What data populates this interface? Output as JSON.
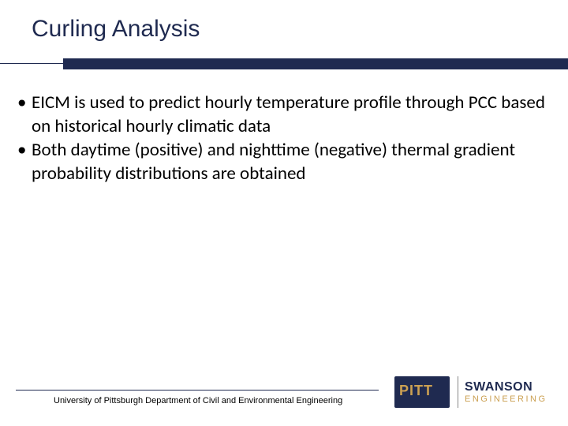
{
  "title": "Curling Analysis",
  "bullets": [
    "EICM is used to predict hourly temperature profile through PCC based on historical hourly climatic data",
    "Both daytime (positive) and nighttime (negative) thermal gradient probability distributions are obtained"
  ],
  "footer_text": "University of Pittsburgh Department of Civil and Environmental Engineering",
  "logo": {
    "pitt": "PITT",
    "swanson_top": "SWANSON",
    "swanson_bot": "ENGINEERING"
  },
  "colors": {
    "primary_navy": "#1f2a50",
    "gold": "#cba052",
    "text": "#000000",
    "background": "#ffffff"
  }
}
